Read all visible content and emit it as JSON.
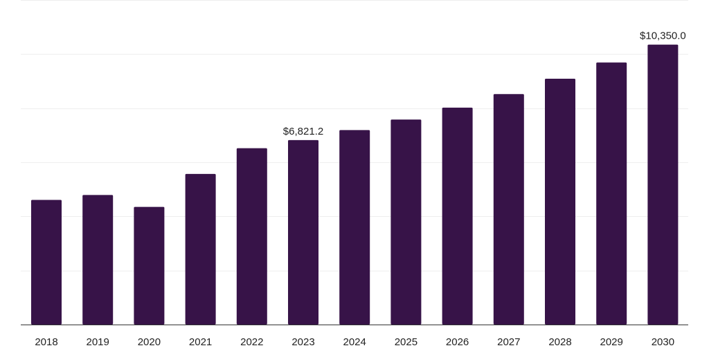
{
  "chart_data": {
    "type": "bar",
    "title": "",
    "xlabel": "",
    "ylabel": "",
    "categories": [
      "2018",
      "2019",
      "2020",
      "2021",
      "2022",
      "2023",
      "2024",
      "2025",
      "2026",
      "2027",
      "2028",
      "2029",
      "2030"
    ],
    "series": [
      {
        "values": [
          4610,
          4790,
          4350,
          5570,
          6520,
          6821.2,
          7190,
          7580,
          8020,
          8520,
          9090,
          9690,
          10350.0
        ]
      }
    ],
    "data_labels": [
      {
        "index": 5,
        "text": "$6,821.2"
      },
      {
        "index": 12,
        "text": "$10,350.0"
      }
    ],
    "ylim": [
      0,
      12000
    ],
    "y_gridlines": [
      0,
      2000,
      4000,
      6000,
      8000,
      10000,
      12000
    ],
    "grid": true,
    "y_tick_labels_shown": false,
    "legend": "none",
    "bar_color": "#371348",
    "axis_color": "#333333",
    "grid_color": "#eeeeee",
    "text_color": "#222222"
  }
}
